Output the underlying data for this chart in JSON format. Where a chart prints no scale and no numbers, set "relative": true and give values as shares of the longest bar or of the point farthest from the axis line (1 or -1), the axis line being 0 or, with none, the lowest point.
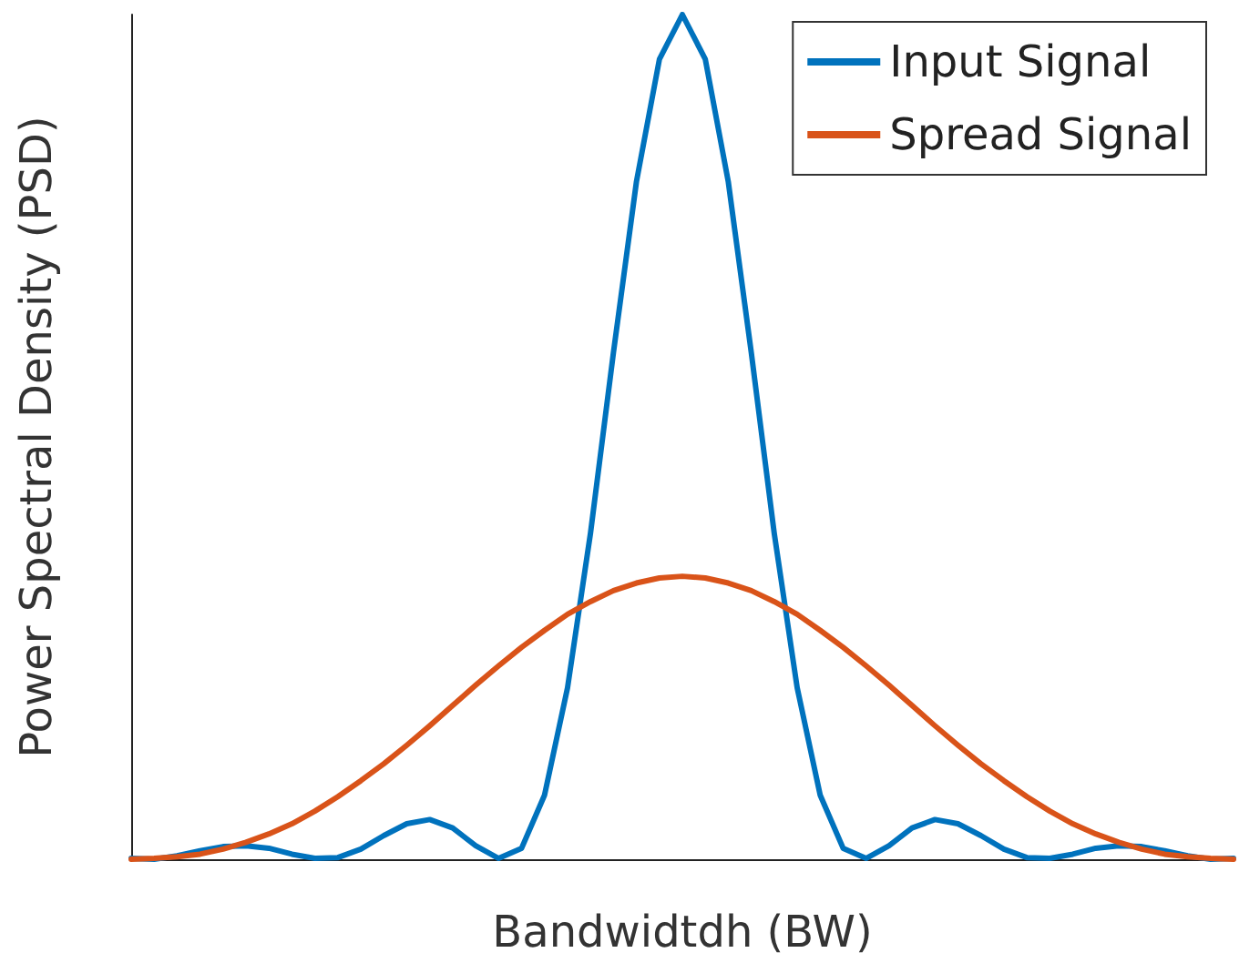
{
  "chart_data": {
    "type": "line",
    "relative": true,
    "xlabel": "Bandwidtdh (BW)",
    "ylabel": "Power Spectral Density (PSD)",
    "categories": [
      null,
      null,
      null,
      null,
      null,
      null,
      null,
      null,
      null,
      null,
      null,
      null,
      null,
      null,
      null,
      null,
      null,
      null,
      null,
      null,
      null,
      null,
      null,
      null,
      null,
      null,
      null,
      null,
      null,
      null,
      null,
      null,
      null,
      null,
      null,
      null,
      null,
      null,
      null,
      null,
      null,
      null,
      null,
      null,
      null,
      null,
      null,
      null,
      null
    ],
    "series": [
      {
        "name": "Input Signal",
        "color": "#0072bd",
        "values": [
          0.001,
          0,
          0.004,
          0.01,
          0.015,
          0.016,
          0.013,
          0.006,
          0.001,
          0.002,
          0.012,
          0.028,
          0.042,
          0.047,
          0.037,
          0.016,
          0.001,
          0.013,
          0.076,
          0.203,
          0.386,
          0.6,
          0.802,
          0.947,
          1,
          0.947,
          0.802,
          0.6,
          0.386,
          0.203,
          0.076,
          0.013,
          0.001,
          0.016,
          0.037,
          0.047,
          0.042,
          0.028,
          0.012,
          0.002,
          0.001,
          0.006,
          0.013,
          0.016,
          0.015,
          0.01,
          0.004,
          0,
          0.001
        ]
      },
      {
        "name": "Spread Signal",
        "color": "#d95319",
        "values": [
          0,
          0.001,
          0.003,
          0.006,
          0.012,
          0.02,
          0.03,
          0.042,
          0.057,
          0.074,
          0.093,
          0.113,
          0.135,
          0.158,
          0.182,
          0.206,
          0.229,
          0.251,
          0.271,
          0.29,
          0.305,
          0.318,
          0.327,
          0.333,
          0.335,
          0.333,
          0.327,
          0.318,
          0.305,
          0.29,
          0.271,
          0.251,
          0.229,
          0.206,
          0.182,
          0.158,
          0.135,
          0.113,
          0.093,
          0.074,
          0.057,
          0.042,
          0.03,
          0.02,
          0.012,
          0.006,
          0.003,
          0.001,
          0
        ]
      }
    ],
    "legend": "top right",
    "grid": false,
    "marker": "none",
    "line_style": "solid"
  }
}
